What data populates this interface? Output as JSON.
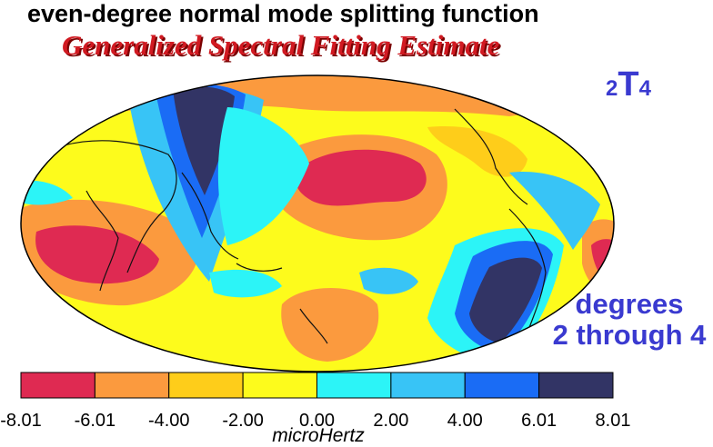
{
  "title": "even-degree normal mode splitting function",
  "subtitle": "Generalized Spectral Fitting Estimate",
  "mode_label": {
    "prefix": "2",
    "letter": "T",
    "suffix": "4"
  },
  "degrees_label": {
    "line1": "degrees",
    "line2": "2 through 4"
  },
  "colorbar": {
    "unit": "microHertz",
    "ticks": [
      "-8.01",
      "-6.01",
      "-4.00",
      "-2.00",
      "0.00",
      "2.00",
      "4.00",
      "6.01",
      "8.01"
    ],
    "colors": [
      "#df2a52",
      "#fb9a3e",
      "#fecd1a",
      "#fdfb1c",
      "#2cf4f7",
      "#38c4f6",
      "#1a6cf5",
      "#323465"
    ]
  }
}
